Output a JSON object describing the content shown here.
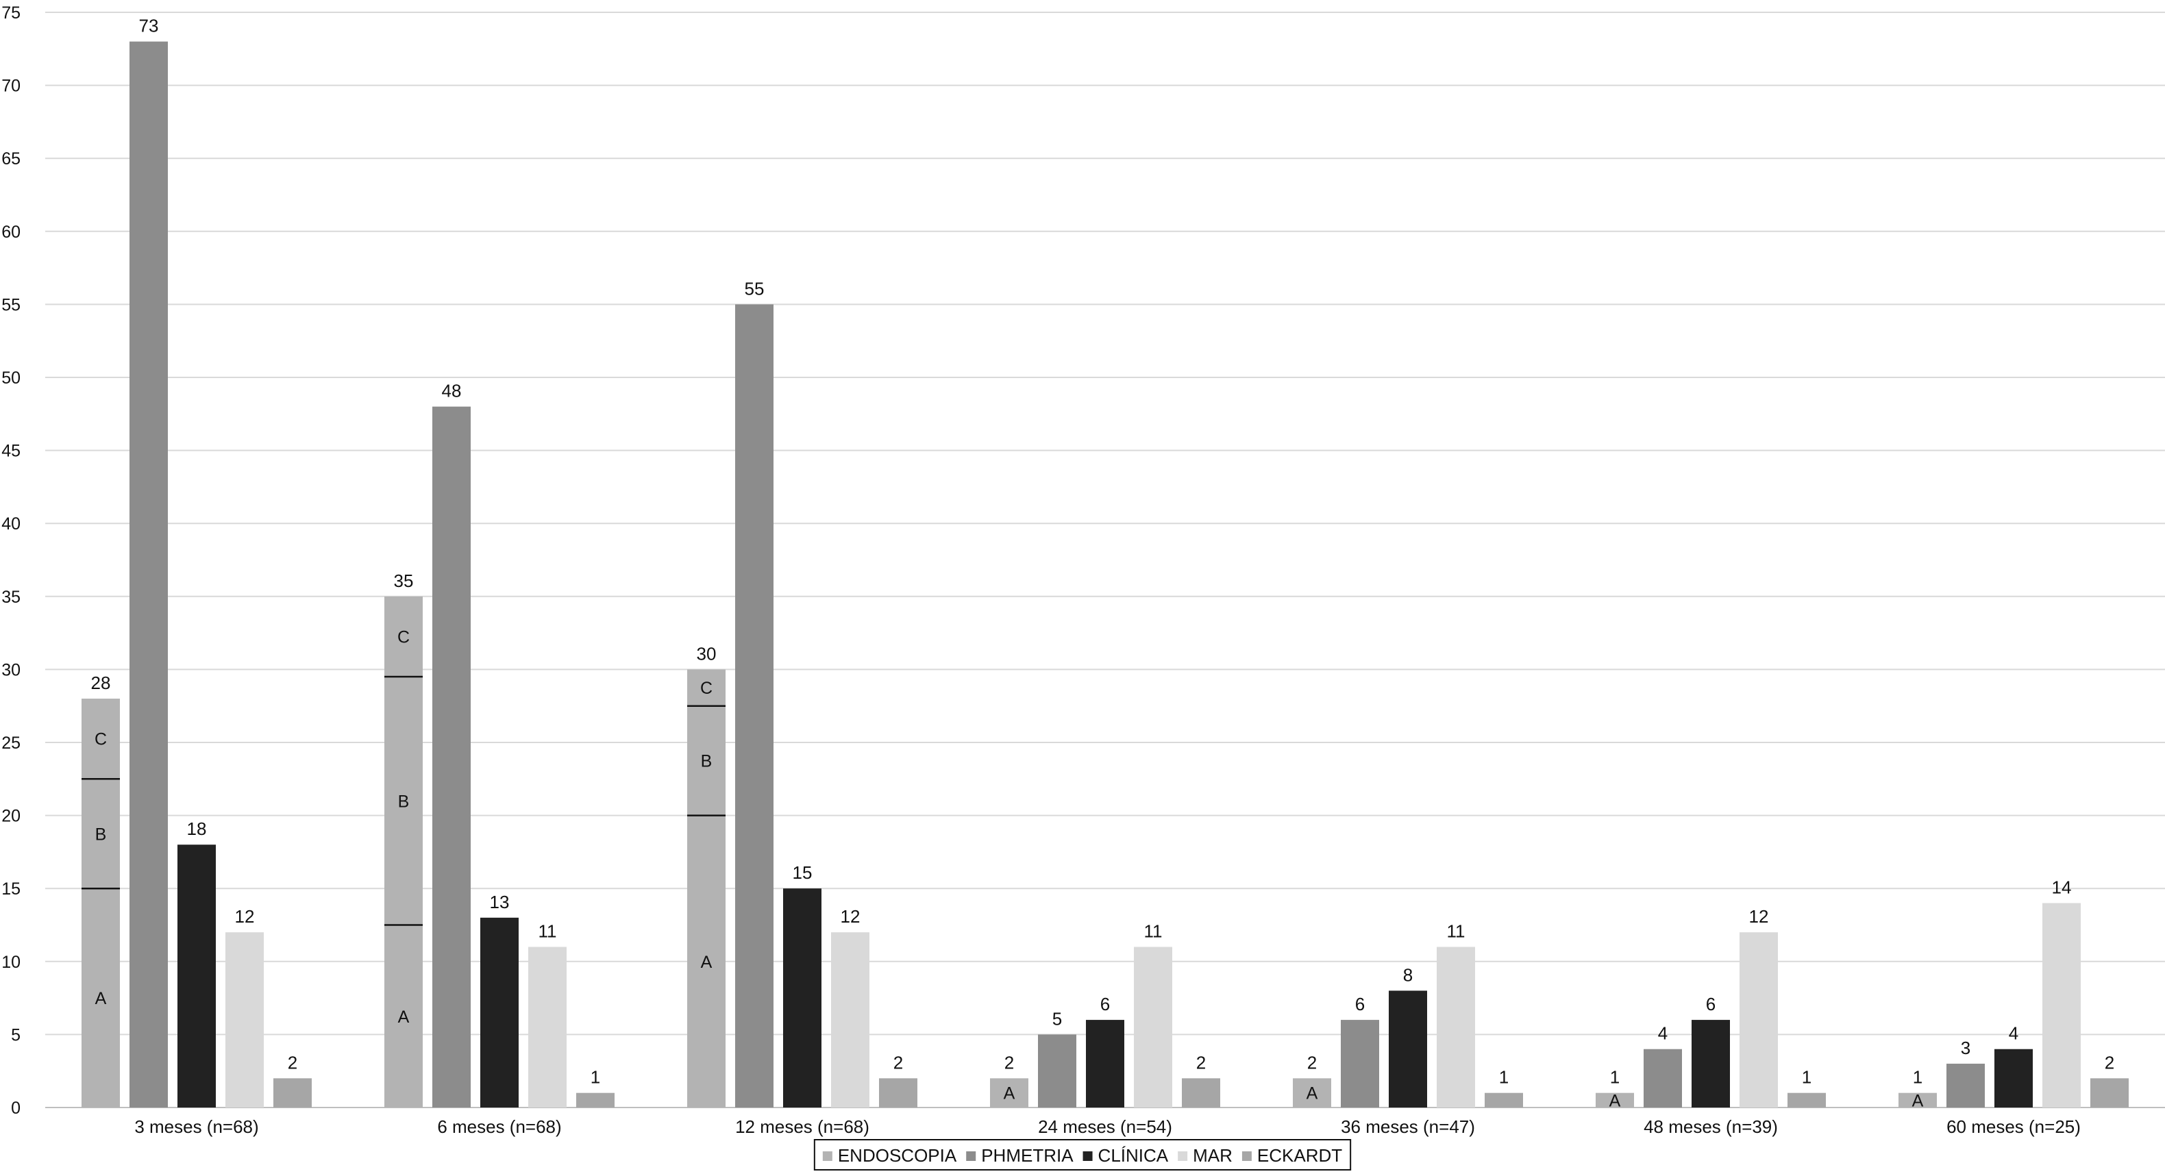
{
  "chart_data": {
    "type": "bar",
    "title": "",
    "xlabel": "",
    "ylabel": "",
    "ylim": [
      0,
      75
    ],
    "yticks": [
      0,
      5,
      10,
      15,
      20,
      25,
      30,
      35,
      40,
      45,
      50,
      55,
      60,
      65,
      70,
      75
    ],
    "grid": true,
    "legend_position": "bottom",
    "categories": [
      "3 meses (n=68)",
      "6 meses (n=68)",
      "12 meses (n=68)",
      "24 meses (n=54)",
      "36 meses (n=47)",
      "48 meses (n=39)",
      "60 meses (n=25)"
    ],
    "series": [
      {
        "name": "ENDOSCOPIA",
        "color": "#b3b3b3",
        "values": [
          28,
          35,
          30,
          2,
          2,
          1,
          1
        ]
      },
      {
        "name": "PHMETRIA",
        "color": "#8c8c8c",
        "values": [
          73,
          48,
          55,
          5,
          6,
          4,
          3
        ]
      },
      {
        "name": "CLÍNICA",
        "color": "#222222",
        "values": [
          18,
          13,
          15,
          6,
          8,
          6,
          4
        ]
      },
      {
        "name": "MAR",
        "color": "#d9d9d9",
        "values": [
          12,
          11,
          12,
          11,
          11,
          12,
          14
        ]
      },
      {
        "name": "ECKARDT",
        "color": "#a6a6a6",
        "values": [
          2,
          1,
          2,
          2,
          1,
          1,
          2
        ]
      }
    ],
    "endoscopia_segments": [
      [
        {
          "label": "A",
          "from": 0,
          "to": 15
        },
        {
          "label": "B",
          "from": 15,
          "to": 22.5
        },
        {
          "label": "C",
          "from": 22.5,
          "to": 28
        }
      ],
      [
        {
          "label": "A",
          "from": 0,
          "to": 12.5
        },
        {
          "label": "B",
          "from": 12.5,
          "to": 29.5
        },
        {
          "label": "C",
          "from": 29.5,
          "to": 35
        }
      ],
      [
        {
          "label": "A",
          "from": 0,
          "to": 20
        },
        {
          "label": "B",
          "from": 20,
          "to": 27.5
        },
        {
          "label": "C",
          "from": 27.5,
          "to": 30
        }
      ],
      [
        {
          "label": "A",
          "from": 0,
          "to": 2
        }
      ],
      [
        {
          "label": "A",
          "from": 0,
          "to": 2
        }
      ],
      [
        {
          "label": "A",
          "from": 0,
          "to": 1
        }
      ],
      [
        {
          "label": "A",
          "from": 0,
          "to": 1
        }
      ]
    ]
  }
}
